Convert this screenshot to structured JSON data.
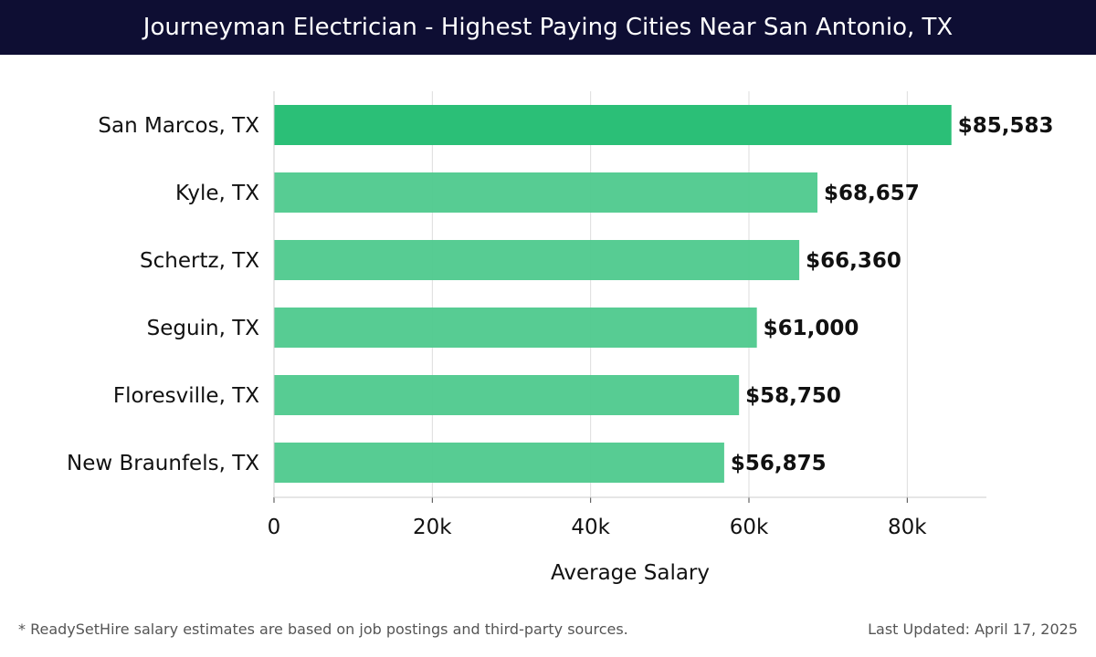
{
  "header": {
    "title": "Journeyman Electrician - Highest Paying Cities Near San Antonio, TX"
  },
  "footer": {
    "note": "* ReadySetHire salary estimates are based on job postings and third-party sources.",
    "updated": "Last Updated: April 17, 2025"
  },
  "colors": {
    "header_bg": "#0e0e33",
    "bar_top": "#2bbf77",
    "bar": "#4ec98d",
    "grid": "#dddddd"
  },
  "chart_data": {
    "type": "bar",
    "orientation": "horizontal",
    "categories": [
      "San Marcos, TX",
      "Kyle, TX",
      "Schertz, TX",
      "Seguin, TX",
      "Floresville, TX",
      "New Braunfels, TX"
    ],
    "values": [
      85583,
      68657,
      66360,
      61000,
      58750,
      56875
    ],
    "value_labels": [
      "$85,583",
      "$68,657",
      "$66,360",
      "$61,000",
      "$58,750",
      "$56,875"
    ],
    "xlabel": "Average Salary",
    "xlim": [
      0,
      90000
    ],
    "xticks": [
      0,
      20000,
      40000,
      60000,
      80000
    ],
    "xtick_labels": [
      "0",
      "20k",
      "40k",
      "60k",
      "80k"
    ],
    "grid": true
  }
}
